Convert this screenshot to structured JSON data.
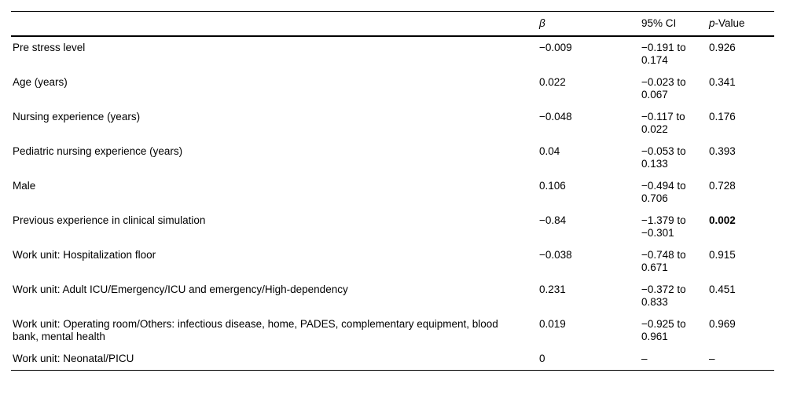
{
  "table": {
    "header": {
      "label": "",
      "beta": "β",
      "ci": "95% CI",
      "p_prefix": "p",
      "p_suffix": "-Value"
    },
    "rows": [
      {
        "label": "Pre stress level",
        "beta": "−0.009",
        "ci": "−0.191 to 0.174",
        "p": "0.926",
        "p_bold": false
      },
      {
        "label": "Age (years)",
        "beta": "0.022",
        "ci": "−0.023 to 0.067",
        "p": "0.341",
        "p_bold": false
      },
      {
        "label": "Nursing experience (years)",
        "beta": "−0.048",
        "ci": "−0.117 to 0.022",
        "p": "0.176",
        "p_bold": false
      },
      {
        "label": "Pediatric nursing experience (years)",
        "beta": "0.04",
        "ci": "−0.053 to 0.133",
        "p": "0.393",
        "p_bold": false
      },
      {
        "label": "Male",
        "beta": "0.106",
        "ci": "−0.494 to 0.706",
        "p": "0.728",
        "p_bold": false
      },
      {
        "label": "Previous experience in clinical simulation",
        "beta": "−0.84",
        "ci": "−1.379 to −0.301",
        "p": "0.002",
        "p_bold": true
      },
      {
        "label": "Work unit: Hospitalization floor",
        "beta": "−0.038",
        "ci": "−0.748 to 0.671",
        "p": "0.915",
        "p_bold": false
      },
      {
        "label": "Work unit: Adult ICU/Emergency/ICU and emergency/High-dependency",
        "beta": "0.231",
        "ci": "−0.372 to 0.833",
        "p": "0.451",
        "p_bold": false
      },
      {
        "label": "Work unit: Operating room/Others: infectious disease, home, PADES, complementary equipment, blood bank, mental health",
        "beta": "0.019",
        "ci": "−0.925 to 0.961",
        "p": "0.969",
        "p_bold": false
      },
      {
        "label": "Work unit: Neonatal/PICU",
        "beta": "0",
        "ci": "–",
        "p": "–",
        "p_bold": false
      }
    ]
  }
}
